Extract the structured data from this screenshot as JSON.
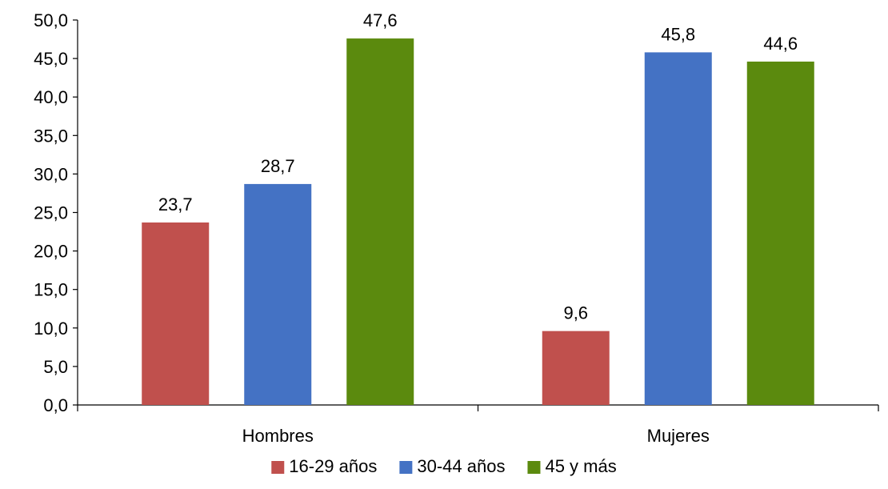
{
  "chart_data": {
    "type": "bar",
    "categories": [
      "Hombres",
      "Mujeres"
    ],
    "series": [
      {
        "name": "16-29 años",
        "color": "#C0504D",
        "values": [
          23.7,
          9.6
        ],
        "labels": [
          "23,7",
          "9,6"
        ]
      },
      {
        "name": "30-44 años",
        "color": "#4472C4",
        "values": [
          28.7,
          45.8
        ],
        "labels": [
          "28,7",
          "45,8"
        ]
      },
      {
        "name": "45 y más",
        "color": "#5B8A0E",
        "values": [
          47.6,
          44.6
        ],
        "labels": [
          "47,6",
          "44,6"
        ]
      }
    ],
    "ylim": [
      0,
      50
    ],
    "yticks": [
      0,
      5,
      10,
      15,
      20,
      25,
      30,
      35,
      40,
      45,
      50
    ],
    "ytick_labels": [
      "0,0",
      "5,0",
      "10,0",
      "15,0",
      "20,0",
      "25,0",
      "30,0",
      "35,0",
      "40,0",
      "45,0",
      "50,0"
    ],
    "grid": false,
    "legend_position": "bottom",
    "title": "",
    "xlabel": "",
    "ylabel": ""
  }
}
